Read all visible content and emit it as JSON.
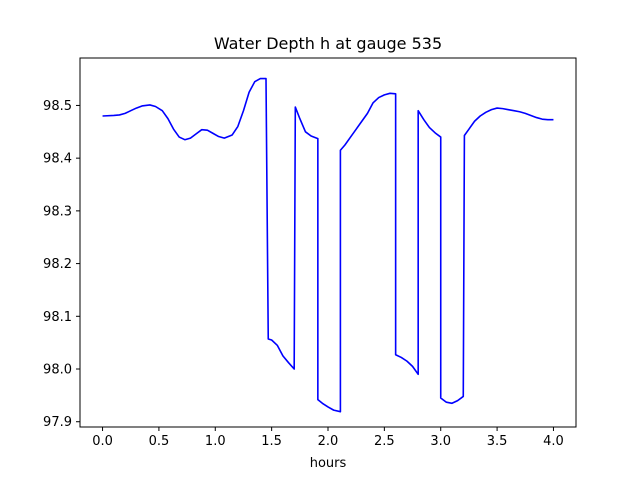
{
  "chart_data": {
    "type": "line",
    "title": "Water Depth h at gauge 535",
    "xlabel": "hours",
    "ylabel": "",
    "xlim": [
      -0.2,
      4.2
    ],
    "ylim": [
      97.89,
      98.59
    ],
    "grid": false,
    "legend": "none",
    "x_ticks": [
      {
        "value": 0.0,
        "label": "0.0"
      },
      {
        "value": 0.5,
        "label": "0.5"
      },
      {
        "value": 1.0,
        "label": "1.0"
      },
      {
        "value": 1.5,
        "label": "1.5"
      },
      {
        "value": 2.0,
        "label": "2.0"
      },
      {
        "value": 2.5,
        "label": "2.5"
      },
      {
        "value": 3.0,
        "label": "3.0"
      },
      {
        "value": 3.5,
        "label": "3.5"
      },
      {
        "value": 4.0,
        "label": "4.0"
      }
    ],
    "y_ticks": [
      {
        "value": 97.9,
        "label": "97.9"
      },
      {
        "value": 98.0,
        "label": "98.0"
      },
      {
        "value": 98.1,
        "label": "98.1"
      },
      {
        "value": 98.2,
        "label": "98.2"
      },
      {
        "value": 98.3,
        "label": "98.3"
      },
      {
        "value": 98.4,
        "label": "98.4"
      },
      {
        "value": 98.5,
        "label": "98.5"
      }
    ],
    "series": [
      {
        "color": "#0000ff",
        "x": [
          0.0,
          0.1,
          0.15,
          0.2,
          0.25,
          0.3,
          0.35,
          0.42,
          0.47,
          0.53,
          0.58,
          0.63,
          0.68,
          0.73,
          0.78,
          0.83,
          0.88,
          0.93,
          0.98,
          1.03,
          1.08,
          1.15,
          1.2,
          1.25,
          1.3,
          1.35,
          1.4,
          1.45,
          1.47,
          1.47,
          1.5,
          1.55,
          1.6,
          1.65,
          1.7,
          1.71,
          1.75,
          1.8,
          1.85,
          1.91,
          1.91,
          1.95,
          2.0,
          2.05,
          2.11,
          2.11,
          2.15,
          2.2,
          2.25,
          2.3,
          2.35,
          2.4,
          2.45,
          2.5,
          2.55,
          2.6,
          2.6,
          2.65,
          2.7,
          2.75,
          2.8,
          2.8,
          2.85,
          2.9,
          2.95,
          3.0,
          3.0,
          3.05,
          3.1,
          3.15,
          3.2,
          3.21,
          3.25,
          3.3,
          3.35,
          3.4,
          3.45,
          3.5,
          3.55,
          3.6,
          3.65,
          3.7,
          3.75,
          3.8,
          3.85,
          3.9,
          3.95,
          4.0
        ],
        "y": [
          98.48,
          98.481,
          98.482,
          98.485,
          98.49,
          98.495,
          98.499,
          98.501,
          98.498,
          98.49,
          98.475,
          98.455,
          98.44,
          98.435,
          98.438,
          98.446,
          98.454,
          98.453,
          98.447,
          98.441,
          98.438,
          98.444,
          98.46,
          98.49,
          98.525,
          98.545,
          98.551,
          98.551,
          98.057,
          98.057,
          98.055,
          98.045,
          98.025,
          98.012,
          98.0,
          98.497,
          98.475,
          98.45,
          98.442,
          98.437,
          97.942,
          97.935,
          97.928,
          97.922,
          97.919,
          98.415,
          98.425,
          98.44,
          98.455,
          98.47,
          98.485,
          98.505,
          98.515,
          98.52,
          98.523,
          98.522,
          98.027,
          98.022,
          98.015,
          98.005,
          97.99,
          98.49,
          98.473,
          98.458,
          98.448,
          98.44,
          97.945,
          97.937,
          97.935,
          97.94,
          97.948,
          98.443,
          98.455,
          98.47,
          98.48,
          98.487,
          98.492,
          98.495,
          98.494,
          98.492,
          98.49,
          98.488,
          98.485,
          98.481,
          98.477,
          98.474,
          98.473,
          98.473
        ]
      }
    ]
  }
}
